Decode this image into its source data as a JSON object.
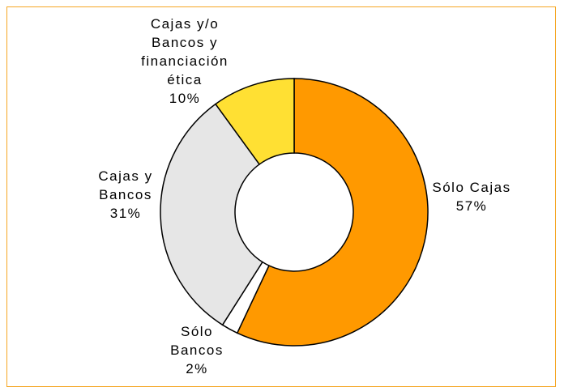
{
  "chart_data": {
    "type": "donut",
    "categories": [
      "Sólo Cajas",
      "Sólo Bancos",
      "Cajas y Bancos",
      "Cajas y/o Bancos y financiación ética"
    ],
    "values": [
      57,
      2,
      31,
      10
    ],
    "value_labels": [
      "57%",
      "2%",
      "31%",
      "10%"
    ],
    "colors": [
      "#ff9900",
      "#ffffff",
      "#e6e6e6",
      "#ffe033"
    ]
  }
}
